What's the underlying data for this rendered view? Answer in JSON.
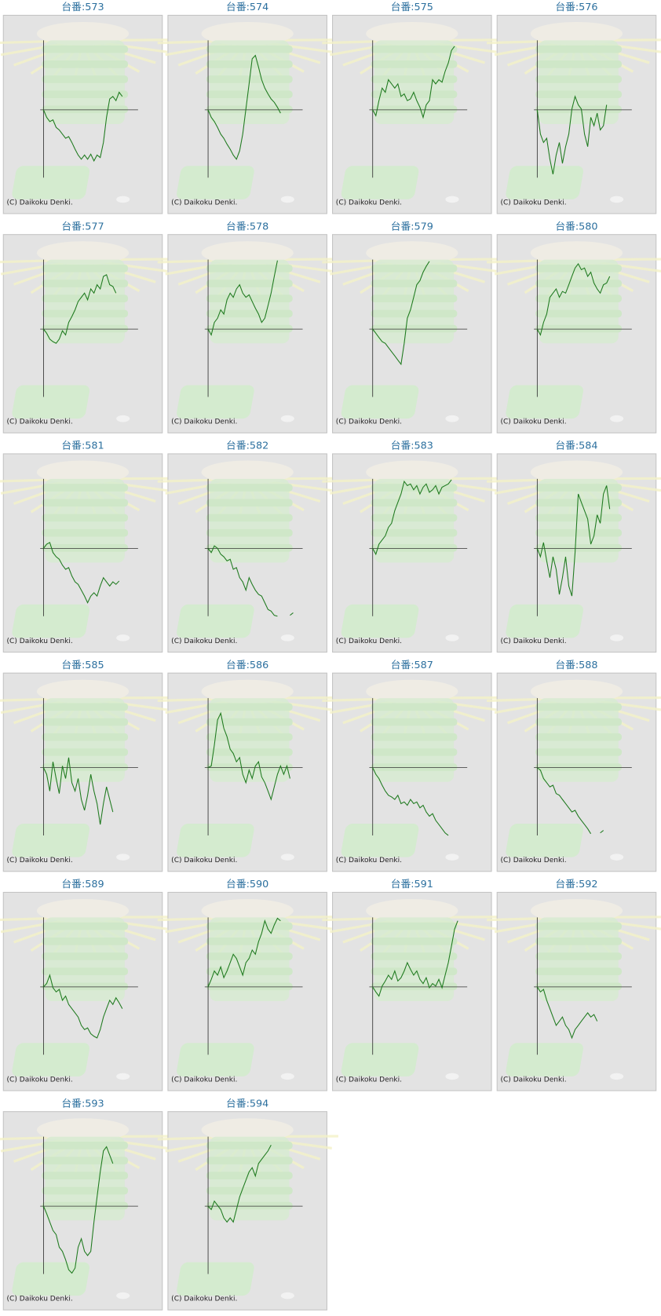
{
  "chart_data": [
    {
      "type": "line",
      "title": "台番:573",
      "annotation": "(C) Daikoku Denki.",
      "color": "#1f7a1f",
      "xlim": [
        0,
        30
      ],
      "ylim": [
        -81,
        83
      ],
      "values": [
        0,
        -9,
        -14,
        -12,
        -21,
        -24,
        -29,
        -34,
        -32,
        -39,
        -47,
        -54,
        -59,
        -54,
        -59,
        -53,
        -61,
        -54,
        -57,
        -39,
        -9,
        13,
        16,
        11,
        21,
        16
      ]
    },
    {
      "type": "line",
      "title": "台番:574",
      "annotation": "(C) Daikoku Denki.",
      "color": "#1f7a1f",
      "xlim": [
        0,
        30
      ],
      "ylim": [
        -81,
        83
      ],
      "values": [
        0,
        -9,
        -14,
        -21,
        -29,
        -34,
        -41,
        -47,
        -54,
        -59,
        -49,
        -29,
        1,
        31,
        61,
        65,
        51,
        36,
        26,
        19,
        13,
        9,
        3,
        -4
      ]
    },
    {
      "type": "line",
      "title": "台番:575",
      "annotation": "(C) Daikoku Denki.",
      "color": "#1f7a1f",
      "xlim": [
        0,
        30
      ],
      "ylim": [
        -81,
        83
      ],
      "values": [
        0,
        -7,
        11,
        26,
        21,
        36,
        31,
        26,
        31,
        16,
        19,
        11,
        13,
        21,
        11,
        3,
        -9,
        6,
        11,
        36,
        31,
        36,
        33,
        46,
        56,
        71,
        76
      ]
    },
    {
      "type": "line",
      "title": "台番:576",
      "annotation": "(C) Daikoku Denki.",
      "color": "#1f7a1f",
      "xlim": [
        0,
        30
      ],
      "ylim": [
        -81,
        83
      ],
      "values": [
        0,
        -29,
        -39,
        -34,
        -59,
        -77,
        -54,
        -39,
        -64,
        -44,
        -29,
        1,
        16,
        6,
        1,
        -29,
        -44,
        -9,
        -19,
        -4,
        -24,
        -19,
        6
      ]
    },
    {
      "type": "line",
      "title": "台番:577",
      "annotation": "(C) Daikoku Denki.",
      "color": "#1f7a1f",
      "xlim": [
        0,
        30
      ],
      "ylim": [
        -81,
        83
      ],
      "values": [
        0,
        -5,
        -12,
        -15,
        -17,
        -12,
        -2,
        -7,
        8,
        15,
        23,
        33,
        38,
        43,
        35,
        48,
        43,
        53,
        48,
        63,
        65,
        53,
        51,
        43
      ]
    },
    {
      "type": "line",
      "title": "台番:578",
      "annotation": "(C) Daikoku Denki.",
      "color": "#1f7a1f",
      "xlim": [
        0,
        30
      ],
      "ylim": [
        -81,
        83
      ],
      "values": [
        0,
        -7,
        8,
        13,
        23,
        18,
        35,
        43,
        38,
        48,
        53,
        43,
        38,
        41,
        33,
        25,
        18,
        8,
        13,
        28,
        43,
        63,
        82
      ]
    },
    {
      "type": "line",
      "title": "台番:579",
      "annotation": "(C) Daikoku Denki.",
      "color": "#1f7a1f",
      "xlim": [
        0,
        30
      ],
      "ylim": [
        -81,
        83
      ],
      "values": [
        0,
        -5,
        -10,
        -15,
        -17,
        -22,
        -27,
        -32,
        -37,
        -42,
        -17,
        13,
        23,
        38,
        53,
        58,
        68,
        75,
        81
      ]
    },
    {
      "type": "line",
      "title": "台番:580",
      "annotation": "(C) Daikoku Denki.",
      "color": "#1f7a1f",
      "xlim": [
        0,
        30
      ],
      "ylim": [
        -81,
        83
      ],
      "values": [
        0,
        -7,
        8,
        18,
        38,
        43,
        48,
        38,
        45,
        43,
        53,
        63,
        73,
        78,
        71,
        73,
        63,
        68,
        55,
        48,
        43,
        53,
        55,
        63
      ]
    },
    {
      "type": "line",
      "title": "台番:581",
      "annotation": "(C) Daikoku Denki.",
      "color": "#1f7a1f",
      "xlim": [
        0,
        30
      ],
      "ylim": [
        -81,
        83
      ],
      "values": [
        0,
        5,
        7,
        -5,
        -10,
        -13,
        -20,
        -25,
        -23,
        -33,
        -40,
        -43,
        -50,
        -57,
        -65,
        -57,
        -53,
        -57,
        -45,
        -35,
        -40,
        -45,
        -40,
        -43,
        -39
      ]
    },
    {
      "type": "line",
      "title": "台番:582",
      "annotation": "(C) Daikoku Denki.",
      "color": "#1f7a1f",
      "xlim": [
        0,
        30
      ],
      "ylim": [
        -81,
        83
      ],
      "values": [
        0,
        -5,
        3,
        0,
        -7,
        -10,
        -15,
        -13,
        -25,
        -23,
        -35,
        -40,
        -50,
        -35,
        -43,
        -50,
        -55,
        -57,
        -65,
        -73,
        -75,
        -80,
        -81,
        null,
        null,
        null,
        -80,
        -77
      ]
    },
    {
      "type": "line",
      "title": "台番:583",
      "annotation": "(C) Daikoku Denki.",
      "color": "#1f7a1f",
      "xlim": [
        0,
        30
      ],
      "ylim": [
        -81,
        83
      ],
      "values": [
        0,
        -7,
        5,
        10,
        15,
        25,
        30,
        45,
        55,
        65,
        80,
        75,
        77,
        70,
        75,
        65,
        73,
        77,
        67,
        70,
        75,
        65,
        73,
        75,
        77,
        82
      ]
    },
    {
      "type": "line",
      "title": "台番:584",
      "annotation": "(C) Daikoku Denki.",
      "color": "#1f7a1f",
      "xlim": [
        0,
        30
      ],
      "ylim": [
        -81,
        83
      ],
      "values": [
        0,
        -10,
        7,
        -15,
        -35,
        -10,
        -25,
        -55,
        -35,
        -10,
        -45,
        -57,
        -5,
        65,
        55,
        45,
        35,
        5,
        15,
        40,
        30,
        65,
        75,
        47
      ]
    },
    {
      "type": "line",
      "title": "台番:585",
      "annotation": "(C) Daikoku Denki.",
      "color": "#1f7a1f",
      "xlim": [
        0,
        30
      ],
      "ylim": [
        -81,
        83
      ],
      "values": [
        0,
        -8,
        -28,
        7,
        -13,
        -31,
        2,
        -13,
        12,
        -18,
        -28,
        -13,
        -38,
        -51,
        -33,
        -8,
        -28,
        -43,
        -68,
        -43,
        -23,
        -38,
        -53
      ]
    },
    {
      "type": "line",
      "title": "台番:586",
      "annotation": "(C) Daikoku Denki.",
      "color": "#1f7a1f",
      "xlim": [
        0,
        30
      ],
      "ylim": [
        -81,
        83
      ],
      "values": [
        0,
        2,
        27,
        57,
        65,
        47,
        37,
        22,
        17,
        7,
        12,
        -8,
        -18,
        -3,
        -13,
        2,
        7,
        -11,
        -18,
        -28,
        -38,
        -23,
        -8,
        2,
        -8,
        2,
        -13
      ]
    },
    {
      "type": "line",
      "title": "台番:587",
      "annotation": "(C) Daikoku Denki.",
      "color": "#1f7a1f",
      "xlim": [
        0,
        30
      ],
      "ylim": [
        -81,
        83
      ],
      "values": [
        0,
        -8,
        -13,
        -21,
        -28,
        -33,
        -35,
        -38,
        -33,
        -43,
        -41,
        -45,
        -38,
        -43,
        -41,
        -48,
        -45,
        -53,
        -58,
        -55,
        -63,
        -68,
        -73,
        -78,
        -81
      ]
    },
    {
      "type": "line",
      "title": "台番:588",
      "annotation": "(C) Daikoku Denki.",
      "color": "#1f7a1f",
      "xlim": [
        0,
        30
      ],
      "ylim": [
        -81,
        83
      ],
      "values": [
        0,
        -3,
        -13,
        -18,
        -23,
        -21,
        -31,
        -33,
        -38,
        -43,
        -48,
        -53,
        -51,
        -58,
        -63,
        -68,
        -73,
        -79,
        null,
        null,
        -78,
        -75
      ]
    },
    {
      "type": "line",
      "title": "台番:589",
      "annotation": "(C) Daikoku Denki.",
      "color": "#1f7a1f",
      "xlim": [
        0,
        30
      ],
      "ylim": [
        -81,
        83
      ],
      "values": [
        0,
        4,
        14,
        -1,
        -6,
        -3,
        -16,
        -11,
        -21,
        -26,
        -31,
        -36,
        -46,
        -51,
        -49,
        -56,
        -59,
        -61,
        -51,
        -36,
        -26,
        -16,
        -21,
        -13,
        -19,
        -26
      ]
    },
    {
      "type": "line",
      "title": "台番:590",
      "annotation": "(C) Daikoku Denki.",
      "color": "#1f7a1f",
      "xlim": [
        0,
        30
      ],
      "ylim": [
        -81,
        83
      ],
      "values": [
        0,
        9,
        19,
        14,
        24,
        11,
        19,
        29,
        39,
        34,
        24,
        14,
        29,
        34,
        44,
        39,
        54,
        64,
        79,
        69,
        64,
        74,
        82,
        79
      ]
    },
    {
      "type": "line",
      "title": "台番:591",
      "annotation": "(C) Daikoku Denki.",
      "color": "#1f7a1f",
      "xlim": [
        0,
        30
      ],
      "ylim": [
        -81,
        83
      ],
      "values": [
        0,
        -6,
        -11,
        1,
        7,
        14,
        9,
        19,
        7,
        11,
        19,
        29,
        21,
        14,
        19,
        9,
        4,
        11,
        -1,
        4,
        1,
        9,
        -1,
        14,
        29,
        49,
        69,
        79
      ]
    },
    {
      "type": "line",
      "title": "台番:592",
      "annotation": "(C) Daikoku Denki.",
      "color": "#1f7a1f",
      "xlim": [
        0,
        30
      ],
      "ylim": [
        -81,
        83
      ],
      "values": [
        0,
        -6,
        -3,
        -16,
        -26,
        -36,
        -46,
        -41,
        -36,
        -46,
        -51,
        -61,
        -51,
        -46,
        -41,
        -36,
        -31,
        -36,
        -33,
        -41
      ]
    },
    {
      "type": "line",
      "title": "台番:593",
      "annotation": "(C) Daikoku Denki.",
      "color": "#1f7a1f",
      "xlim": [
        0,
        30
      ],
      "ylim": [
        -81,
        83
      ],
      "values": [
        0,
        -9,
        -19,
        -29,
        -34,
        -49,
        -54,
        -64,
        -76,
        -80,
        -74,
        -49,
        -39,
        -54,
        -59,
        -54,
        -19,
        11,
        41,
        66,
        71,
        61,
        51
      ]
    },
    {
      "type": "line",
      "title": "台番:594",
      "annotation": "(C) Daikoku Denki.",
      "color": "#1f7a1f",
      "xlim": [
        0,
        30
      ],
      "ylim": [
        -81,
        83
      ],
      "values": [
        0,
        -4,
        6,
        1,
        -4,
        -14,
        -19,
        -14,
        -19,
        -4,
        11,
        21,
        31,
        41,
        46,
        36,
        51,
        56,
        61,
        66,
        73
      ]
    }
  ]
}
